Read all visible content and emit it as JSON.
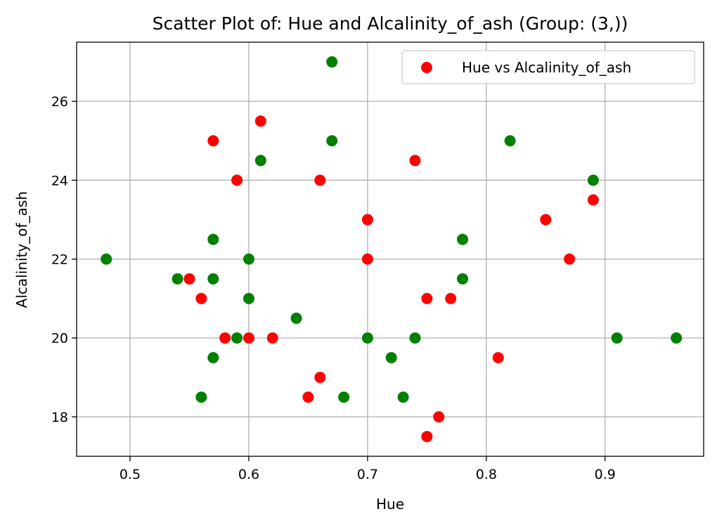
{
  "chart_data": {
    "type": "scatter",
    "title": "Scatter Plot of: Hue and Alcalinity_of_ash (Group: (3,))",
    "xlabel": "Hue",
    "ylabel": "Alcalinity_of_ash",
    "xlim": [
      0.455,
      0.983
    ],
    "ylim": [
      17.0,
      27.5
    ],
    "xticks": [
      0.5,
      0.6,
      0.7,
      0.8,
      0.9
    ],
    "xtick_labels": [
      "0.5",
      "0.6",
      "0.7",
      "0.8",
      "0.9"
    ],
    "yticks": [
      18,
      20,
      22,
      24,
      26
    ],
    "ytick_labels": [
      "18",
      "20",
      "22",
      "24",
      "26"
    ],
    "grid": true,
    "legend": {
      "position": "top-right",
      "entries": [
        "Hue vs Alcalinity_of_ash"
      ]
    },
    "series": [
      {
        "name": "Hue vs Alcalinity_of_ash",
        "color": "#ff0000",
        "points": [
          {
            "x": 0.61,
            "y": 25.5
          },
          {
            "x": 0.57,
            "y": 25.0
          },
          {
            "x": 0.59,
            "y": 24.0
          },
          {
            "x": 0.66,
            "y": 24.0
          },
          {
            "x": 0.74,
            "y": 24.5
          },
          {
            "x": 0.7,
            "y": 23.0
          },
          {
            "x": 0.7,
            "y": 22.0
          },
          {
            "x": 0.55,
            "y": 21.5
          },
          {
            "x": 0.56,
            "y": 21.0
          },
          {
            "x": 0.58,
            "y": 20.0
          },
          {
            "x": 0.6,
            "y": 20.0
          },
          {
            "x": 0.62,
            "y": 20.0
          },
          {
            "x": 0.66,
            "y": 19.0
          },
          {
            "x": 0.65,
            "y": 18.5
          },
          {
            "x": 0.75,
            "y": 21.0
          },
          {
            "x": 0.77,
            "y": 21.0
          },
          {
            "x": 0.75,
            "y": 17.5
          },
          {
            "x": 0.76,
            "y": 18.0
          },
          {
            "x": 0.81,
            "y": 19.5
          },
          {
            "x": 0.85,
            "y": 23.0
          },
          {
            "x": 0.87,
            "y": 22.0
          },
          {
            "x": 0.89,
            "y": 23.5
          }
        ]
      },
      {
        "color": "#008000",
        "points": [
          {
            "x": 0.48,
            "y": 22.0
          },
          {
            "x": 0.54,
            "y": 21.5
          },
          {
            "x": 0.57,
            "y": 22.5
          },
          {
            "x": 0.57,
            "y": 21.5
          },
          {
            "x": 0.57,
            "y": 19.5
          },
          {
            "x": 0.56,
            "y": 18.5
          },
          {
            "x": 0.59,
            "y": 20.0
          },
          {
            "x": 0.6,
            "y": 22.0
          },
          {
            "x": 0.6,
            "y": 21.0
          },
          {
            "x": 0.61,
            "y": 24.5
          },
          {
            "x": 0.64,
            "y": 20.5
          },
          {
            "x": 0.67,
            "y": 27.0
          },
          {
            "x": 0.67,
            "y": 25.0
          },
          {
            "x": 0.68,
            "y": 18.5
          },
          {
            "x": 0.7,
            "y": 20.0
          },
          {
            "x": 0.72,
            "y": 19.5
          },
          {
            "x": 0.73,
            "y": 18.5
          },
          {
            "x": 0.74,
            "y": 20.0
          },
          {
            "x": 0.78,
            "y": 22.5
          },
          {
            "x": 0.78,
            "y": 21.5
          },
          {
            "x": 0.82,
            "y": 25.0
          },
          {
            "x": 0.89,
            "y": 24.0
          },
          {
            "x": 0.91,
            "y": 20.0
          },
          {
            "x": 0.96,
            "y": 20.0
          }
        ]
      }
    ]
  }
}
